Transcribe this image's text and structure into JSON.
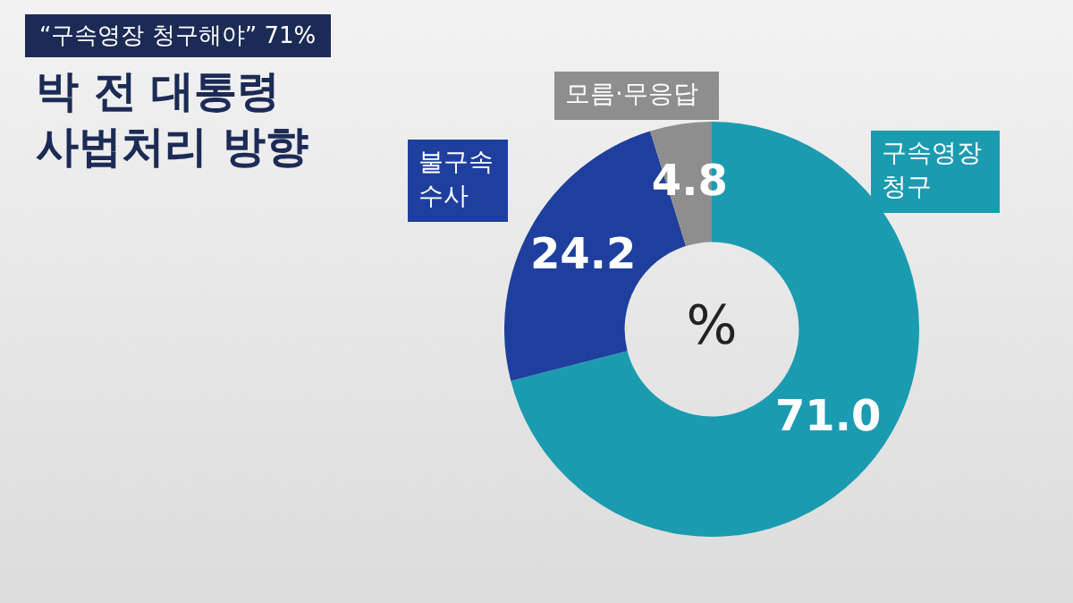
{
  "chart_data": {
    "type": "donut",
    "subtitle": "“구속영장 청구해야” 71%",
    "title": "박 전 대통령 사법처리 방향",
    "categories": [
      "구속영장 청구",
      "불구속 수사",
      "모름·무응답"
    ],
    "values": [
      71.0,
      24.2,
      4.8
    ],
    "value_labels": [
      "71.0",
      "24.2",
      "4.8"
    ],
    "colors": [
      "#1b9bb0",
      "#1f3f9e",
      "#8e8e8e"
    ],
    "annotations": [
      "%"
    ],
    "legend": false
  }
}
